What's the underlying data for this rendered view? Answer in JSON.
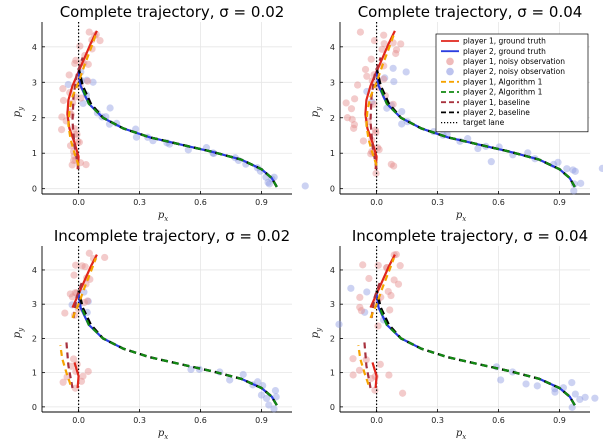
{
  "chart_data": [
    {
      "type": "line",
      "title": "Complete trajectory, σ = 0.02",
      "sigma": 0.02,
      "complete": true,
      "xlabel": "p",
      "xlabel_sub": "x",
      "ylabel": "p",
      "ylabel_sub": "y",
      "xticks": [
        "0.0",
        "0.3",
        "0.6",
        "0.9"
      ],
      "yticks": [
        "0",
        "1",
        "2",
        "3",
        "4"
      ],
      "xlim": [
        -0.18,
        1.05
      ],
      "ylim": [
        -0.15,
        4.7
      ],
      "grid": true,
      "legend": false
    },
    {
      "type": "line",
      "title": "Complete trajectory, σ = 0.04",
      "sigma": 0.04,
      "complete": true,
      "xlabel": "p",
      "xlabel_sub": "x",
      "ylabel": "p",
      "ylabel_sub": "y",
      "xticks": [
        "0.0",
        "0.3",
        "0.6",
        "0.9"
      ],
      "yticks": [
        "0",
        "1",
        "2",
        "3",
        "4"
      ],
      "xlim": [
        -0.18,
        1.05
      ],
      "ylim": [
        -0.15,
        4.7
      ],
      "grid": true,
      "legend": "top-right"
    },
    {
      "type": "line",
      "title": "Incomplete trajectory, σ = 0.02",
      "sigma": 0.02,
      "complete": false,
      "xlabel": "p",
      "xlabel_sub": "x",
      "ylabel": "p",
      "ylabel_sub": "y",
      "xticks": [
        "0.0",
        "0.3",
        "0.6",
        "0.9"
      ],
      "yticks": [
        "0",
        "1",
        "2",
        "3",
        "4"
      ],
      "xlim": [
        -0.18,
        1.05
      ],
      "ylim": [
        -0.15,
        4.7
      ],
      "grid": true,
      "legend": false
    },
    {
      "type": "line",
      "title": "Incomplete trajectory, σ = 0.04",
      "sigma": 0.04,
      "complete": false,
      "xlabel": "p",
      "xlabel_sub": "x",
      "ylabel": "p",
      "ylabel_sub": "y",
      "xticks": [
        "0.0",
        "0.3",
        "0.6",
        "0.9"
      ],
      "yticks": [
        "0",
        "1",
        "2",
        "3",
        "4"
      ],
      "xlim": [
        -0.18,
        1.05
      ],
      "ylim": [
        -0.15,
        4.7
      ],
      "grid": true,
      "legend": false
    }
  ],
  "legend": [
    {
      "label": "player 1, ground truth",
      "color": "#e0261c",
      "kind": "line"
    },
    {
      "label": "player 2, ground truth",
      "color": "#2b3ee0",
      "kind": "line"
    },
    {
      "label": "player 1, noisy observation",
      "color": "#e48c8c",
      "kind": "marker"
    },
    {
      "label": "player 2, noisy observation",
      "color": "#8f9be3",
      "kind": "marker"
    },
    {
      "label": "player 1, Algorithm 1",
      "color": "#f5a300",
      "kind": "dash"
    },
    {
      "label": "player 2, Algorithm 1",
      "color": "#128a12",
      "kind": "dash"
    },
    {
      "label": "player 1, baseline",
      "color": "#a8323e",
      "kind": "dash"
    },
    {
      "label": "player 2, baseline",
      "color": "#000000",
      "kind": "dash"
    },
    {
      "label": "target lane",
      "color": "#000000",
      "kind": "dot"
    }
  ],
  "series": {
    "p1_truth": {
      "name": "player 1, ground truth",
      "color": "#e0261c",
      "x": [
        -0.005,
        0.0,
        -0.02,
        -0.045,
        -0.055,
        -0.05,
        -0.03,
        0.0,
        0.03,
        0.06,
        0.09
      ],
      "y": [
        0.55,
        0.9,
        1.3,
        1.7,
        2.1,
        2.5,
        2.9,
        3.3,
        3.7,
        4.1,
        4.45
      ]
    },
    "p2_truth": {
      "name": "player 2, ground truth",
      "color": "#2b3ee0",
      "x": [
        0.975,
        0.95,
        0.9,
        0.8,
        0.65,
        0.5,
        0.35,
        0.22,
        0.12,
        0.05,
        0.01,
        0.0
      ],
      "y": [
        0.05,
        0.3,
        0.55,
        0.82,
        1.05,
        1.25,
        1.45,
        1.7,
        2.0,
        2.4,
        2.9,
        3.3
      ]
    },
    "p1_alg": {
      "name": "player 1, Algorithm 1",
      "color": "#f5a300",
      "x": [
        0.0,
        -0.02,
        -0.04,
        -0.05,
        -0.045,
        -0.03,
        0.0,
        0.03,
        0.06,
        0.085
      ],
      "y": [
        0.65,
        1.0,
        1.4,
        1.8,
        2.2,
        2.6,
        3.0,
        3.5,
        3.95,
        4.35
      ]
    },
    "p2_alg": {
      "name": "player 2, Algorithm 1",
      "color": "#128a12",
      "x": [
        0.975,
        0.95,
        0.9,
        0.8,
        0.65,
        0.5,
        0.35,
        0.22,
        0.12,
        0.05,
        0.015
      ],
      "y": [
        0.05,
        0.3,
        0.55,
        0.82,
        1.05,
        1.25,
        1.45,
        1.7,
        2.0,
        2.4,
        2.9
      ]
    },
    "p1_base": {
      "name": "player 1, baseline",
      "color": "#a8323e",
      "x": [
        0.0,
        -0.02,
        -0.03,
        -0.025,
        -0.01,
        0.02
      ],
      "y": [
        0.55,
        1.2,
        1.9,
        2.6,
        3.2,
        3.7
      ]
    },
    "p2_base": {
      "name": "player 2, baseline",
      "color": "#000000",
      "x": [
        0.975,
        0.95,
        0.9,
        0.8,
        0.65,
        0.5,
        0.35,
        0.22,
        0.12,
        0.06,
        0.02,
        0.0
      ],
      "y": [
        0.05,
        0.3,
        0.55,
        0.82,
        1.05,
        1.25,
        1.45,
        1.7,
        2.0,
        2.4,
        2.9,
        3.4
      ]
    },
    "target_lane": {
      "name": "target lane",
      "x": 0.0
    }
  }
}
